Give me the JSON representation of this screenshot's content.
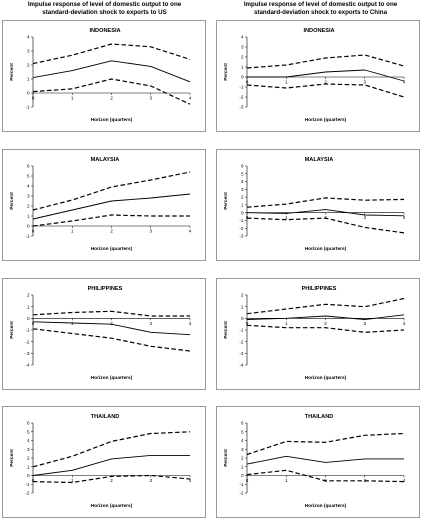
{
  "columns": [
    {
      "title_line1": "Impulse response of level of domestic output to one",
      "title_line2": "standard-deviation shock to exports to US"
    },
    {
      "title_line1": "Impulse response of level of domestic output to one",
      "title_line2": "standard-deviation shock to exports to China"
    }
  ],
  "chart_data": [
    {
      "type": "line",
      "title": "INDONESIA",
      "xlabel": "Horizon (quarters)",
      "ylabel": "Percent",
      "x": [
        0,
        1,
        2,
        3,
        4
      ],
      "ylim": [
        -1,
        4
      ],
      "yticks": [
        -1,
        0,
        1,
        2,
        3,
        4
      ],
      "series": [
        {
          "style": "dashed",
          "values": [
            2.1,
            2.7,
            3.5,
            3.3,
            2.4
          ]
        },
        {
          "style": "solid",
          "values": [
            1.1,
            1.6,
            2.3,
            1.9,
            0.8
          ]
        },
        {
          "style": "dashed",
          "values": [
            0.1,
            0.3,
            1.0,
            0.5,
            -0.8
          ]
        }
      ]
    },
    {
      "type": "line",
      "title": "INDONESIA",
      "xlabel": "Horizon (quarters)",
      "ylabel": "Percent",
      "x": [
        0,
        1,
        2,
        3,
        4
      ],
      "ylim": [
        -3,
        4
      ],
      "yticks": [
        -3,
        -2,
        -1,
        0,
        1,
        2,
        3,
        4
      ],
      "series": [
        {
          "style": "dashed",
          "values": [
            0.9,
            1.2,
            1.9,
            2.2,
            1.1
          ]
        },
        {
          "style": "solid",
          "values": [
            0.0,
            0.0,
            0.5,
            0.7,
            -0.4
          ]
        },
        {
          "style": "dashed",
          "values": [
            -0.8,
            -1.1,
            -0.7,
            -0.8,
            -2.0
          ]
        }
      ]
    },
    {
      "type": "line",
      "title": "MALAYSIA",
      "xlabel": "Horizon (quarters)",
      "ylabel": "Percent",
      "x": [
        0,
        1,
        2,
        3,
        4
      ],
      "ylim": [
        -1,
        6
      ],
      "yticks": [
        -1,
        0,
        1,
        2,
        3,
        4,
        5,
        6
      ],
      "series": [
        {
          "style": "dashed",
          "values": [
            1.6,
            2.6,
            3.9,
            4.6,
            5.4
          ]
        },
        {
          "style": "solid",
          "values": [
            0.7,
            1.6,
            2.5,
            2.8,
            3.2
          ]
        },
        {
          "style": "dashed",
          "values": [
            0.0,
            0.5,
            1.1,
            1.0,
            1.0
          ]
        }
      ]
    },
    {
      "type": "line",
      "title": "MALAYSIA",
      "xlabel": "Horizon (quarters)",
      "ylabel": "Percent",
      "x": [
        0,
        1,
        2,
        3,
        4
      ],
      "ylim": [
        -3,
        6
      ],
      "yticks": [
        -3,
        -2,
        -1,
        0,
        1,
        2,
        3,
        4,
        5,
        6
      ],
      "series": [
        {
          "style": "dashed",
          "values": [
            0.7,
            1.1,
            1.9,
            1.6,
            1.7
          ]
        },
        {
          "style": "solid",
          "values": [
            0.0,
            -0.1,
            0.4,
            -0.3,
            -0.4
          ]
        },
        {
          "style": "dashed",
          "values": [
            -0.7,
            -0.9,
            -0.7,
            -1.9,
            -2.6
          ]
        }
      ]
    },
    {
      "type": "line",
      "title": "PHILIPPINES",
      "xlabel": "Horizon (quarters)",
      "ylabel": "Percent",
      "x": [
        0,
        1,
        2,
        3,
        4
      ],
      "ylim": [
        -4,
        2
      ],
      "yticks": [
        -4,
        -3,
        -2,
        -1,
        0,
        1,
        2
      ],
      "series": [
        {
          "style": "dashed",
          "values": [
            0.3,
            0.5,
            0.6,
            0.2,
            0.2
          ]
        },
        {
          "style": "solid",
          "values": [
            -0.3,
            -0.4,
            -0.5,
            -1.2,
            -1.4
          ]
        },
        {
          "style": "dashed",
          "values": [
            -0.9,
            -1.3,
            -1.7,
            -2.4,
            -2.8
          ]
        }
      ]
    },
    {
      "type": "line",
      "title": "PHILIPPINES",
      "xlabel": "Horizon (quarters)",
      "ylabel": "Percent",
      "x": [
        0,
        1,
        2,
        3,
        4
      ],
      "ylim": [
        -4,
        2
      ],
      "yticks": [
        -4,
        -3,
        -2,
        -1,
        0,
        1,
        2
      ],
      "series": [
        {
          "style": "dashed",
          "values": [
            0.4,
            0.8,
            1.2,
            1.0,
            1.7
          ]
        },
        {
          "style": "solid",
          "values": [
            -0.1,
            0.0,
            0.2,
            -0.1,
            0.3
          ]
        },
        {
          "style": "dashed",
          "values": [
            -0.6,
            -0.8,
            -0.8,
            -1.2,
            -1.0
          ]
        }
      ]
    },
    {
      "type": "line",
      "title": "THAILAND",
      "xlabel": "Horizon (quarters)",
      "ylabel": "Percent",
      "x": [
        0,
        1,
        2,
        3,
        4
      ],
      "ylim": [
        -2,
        6
      ],
      "yticks": [
        -2,
        -1,
        0,
        1,
        2,
        3,
        4,
        5,
        6
      ],
      "series": [
        {
          "style": "dashed",
          "values": [
            1.0,
            2.2,
            3.9,
            4.8,
            5.0
          ]
        },
        {
          "style": "solid",
          "values": [
            0.0,
            0.6,
            1.9,
            2.3,
            2.3
          ]
        },
        {
          "style": "dashed",
          "values": [
            -0.7,
            -0.8,
            -0.1,
            0.0,
            -0.4
          ]
        }
      ]
    },
    {
      "type": "line",
      "title": "THAILAND",
      "xlabel": "Horizon (quarters)",
      "ylabel": "Percent",
      "x": [
        0,
        1,
        2,
        3,
        4
      ],
      "ylim": [
        -2,
        6
      ],
      "yticks": [
        -2,
        -1,
        0,
        1,
        2,
        3,
        4,
        5,
        6
      ],
      "series": [
        {
          "style": "dashed",
          "values": [
            2.4,
            3.9,
            3.8,
            4.6,
            4.8
          ]
        },
        {
          "style": "solid",
          "values": [
            1.3,
            2.2,
            1.5,
            1.9,
            1.9
          ]
        },
        {
          "style": "dashed",
          "values": [
            0.1,
            0.6,
            -0.6,
            -0.6,
            -0.7
          ]
        }
      ]
    }
  ]
}
